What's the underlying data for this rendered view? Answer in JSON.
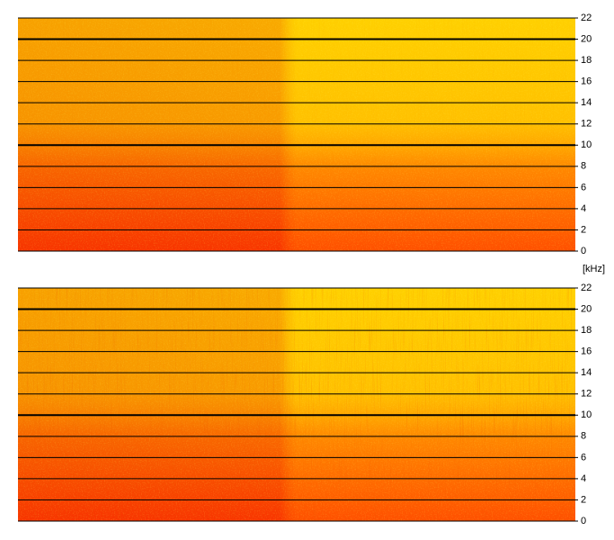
{
  "unit_label": "[kHz]",
  "bold_ticks": [
    10,
    20
  ],
  "panels": [
    {
      "ylim": [
        0,
        22
      ],
      "yticks": [
        0,
        2,
        4,
        6,
        8,
        10,
        12,
        14,
        16,
        18,
        20,
        22
      ]
    },
    {
      "ylim": [
        0,
        22
      ],
      "yticks": [
        0,
        2,
        4,
        6,
        8,
        10,
        12,
        14,
        16,
        18,
        20,
        22
      ]
    }
  ]
}
